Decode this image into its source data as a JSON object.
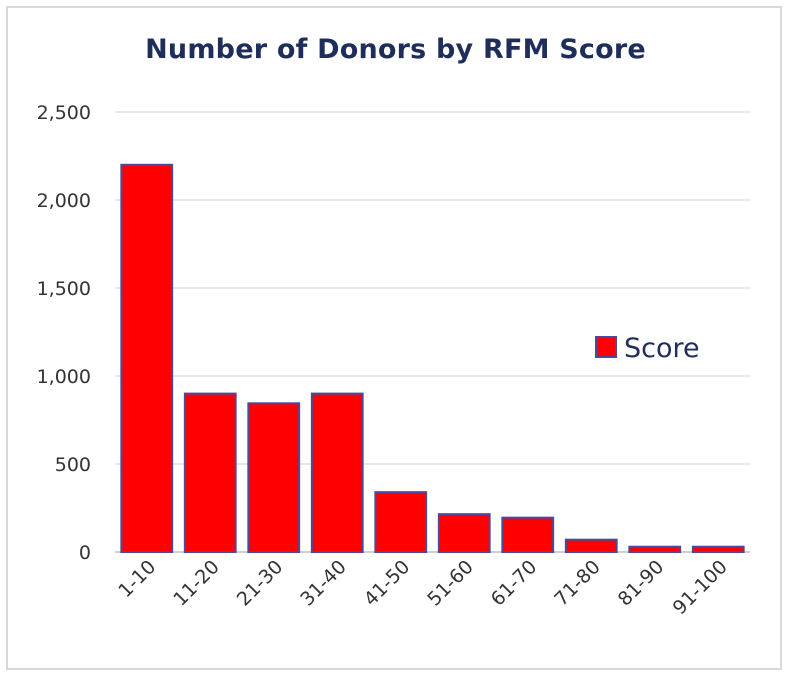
{
  "chart_data": {
    "type": "bar",
    "title": "Number of Donors by RFM Score",
    "categories": [
      "1-10",
      "11-20",
      "21-30",
      "31-40",
      "41-50",
      "51-60",
      "61-70",
      "71-80",
      "81-90",
      "91-100"
    ],
    "series": [
      {
        "name": "Score",
        "values": [
          2200,
          900,
          845,
          900,
          340,
          215,
          195,
          70,
          30,
          30
        ],
        "color": "#ff0000",
        "border_color": "#4a4a9a"
      }
    ],
    "yticks": [
      "0",
      "500",
      "1,000",
      "1,500",
      "2,000",
      "2,500"
    ],
    "ylim": [
      0,
      2500
    ],
    "grid": true,
    "legend": "right"
  }
}
